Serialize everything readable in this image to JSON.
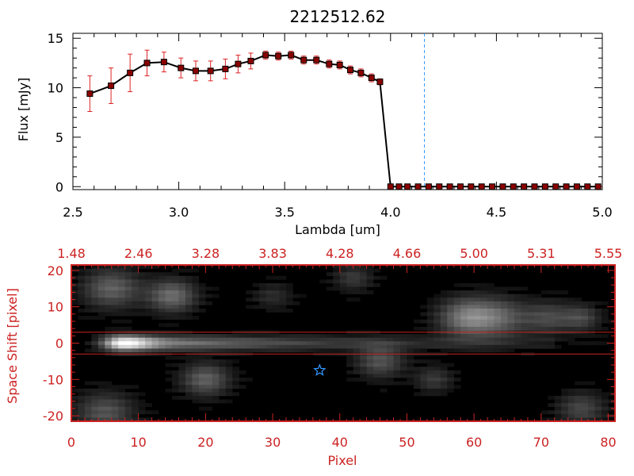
{
  "title": "2212512.62",
  "colors": {
    "axis": "#000000",
    "red_axis": "#cc2222",
    "marker": "#8b0000",
    "errorbar": "#dd2222",
    "vline": "#3399ff",
    "star": "#3399ff"
  },
  "chart_data": [
    {
      "type": "line",
      "title": "2212512.62",
      "xlabel": "Lambda [um]",
      "ylabel": "Flux [mJy]",
      "xlim": [
        2.5,
        5.0
      ],
      "ylim": [
        -0.3,
        15.5
      ],
      "x_ticks": [
        "2.5",
        "3.0",
        "3.5",
        "4.0",
        "4.5",
        "5.0"
      ],
      "y_ticks": [
        "0",
        "5",
        "10",
        "15"
      ],
      "vline_x": 4.16,
      "series": [
        {
          "x": [
            2.58,
            2.68,
            2.77,
            2.85,
            2.93,
            3.01,
            3.08,
            3.15,
            3.22,
            3.28,
            3.34,
            3.41,
            3.47,
            3.53,
            3.59,
            3.65,
            3.71,
            3.76,
            3.81,
            3.86,
            3.91,
            3.95,
            4.0,
            4.04,
            4.08,
            4.13,
            4.18,
            4.23,
            4.28,
            4.33,
            4.38,
            4.43,
            4.48,
            4.53,
            4.58,
            4.63,
            4.68,
            4.73,
            4.78,
            4.83,
            4.88,
            4.93,
            4.98
          ],
          "y": [
            9.4,
            10.2,
            11.5,
            12.5,
            12.6,
            12.0,
            11.7,
            11.7,
            11.9,
            12.4,
            12.7,
            13.3,
            13.2,
            13.3,
            12.8,
            12.8,
            12.4,
            12.3,
            11.8,
            11.5,
            11.0,
            10.6,
            0.0,
            0.0,
            0.0,
            0.0,
            0.0,
            0.0,
            0.0,
            0.0,
            0.0,
            0.0,
            0.0,
            0.0,
            0.0,
            0.0,
            0.0,
            0.0,
            0.0,
            0.0,
            0.0,
            0.0,
            0.0
          ],
          "yerr": [
            1.8,
            1.8,
            1.9,
            1.3,
            1.0,
            1.0,
            1.0,
            1.0,
            1.0,
            0.9,
            0.8,
            0.4,
            0.4,
            0.4,
            0.4,
            0.4,
            0.4,
            0.4,
            0.4,
            0.4,
            0.4,
            0.3,
            0.0,
            0.0,
            0.0,
            0.0,
            0.0,
            0.0,
            0.0,
            0.0,
            0.0,
            0.0,
            0.0,
            0.0,
            0.0,
            0.0,
            0.0,
            0.0,
            0.0,
            0.0,
            0.0,
            0.0,
            0.0
          ]
        }
      ]
    },
    {
      "type": "heatmap",
      "xlabel": "Pixel",
      "ylabel": "Space Shift [pixel]",
      "xlim": [
        0,
        81
      ],
      "ylim": [
        -21.5,
        21.5
      ],
      "x_ticks": [
        "0",
        "10",
        "20",
        "30",
        "40",
        "50",
        "60",
        "70",
        "80"
      ],
      "y_ticks": [
        "-20",
        "-10",
        "0",
        "10",
        "20"
      ],
      "top_ticks": [
        "1.48",
        "2.46",
        "3.28",
        "3.83",
        "4.28",
        "4.66",
        "5.00",
        "5.31",
        "5.55"
      ],
      "hlines": [
        3,
        -3
      ],
      "trace": {
        "center_y": 0,
        "peak_x": 8
      },
      "blobs": [
        {
          "x": 6,
          "y": 15,
          "s": 3,
          "a": 0.35
        },
        {
          "x": 15,
          "y": 13,
          "s": 2.5,
          "a": 0.4
        },
        {
          "x": 20,
          "y": -10,
          "s": 2.5,
          "a": 0.35
        },
        {
          "x": 46,
          "y": -5,
          "s": 2.5,
          "a": 0.3
        },
        {
          "x": 54,
          "y": -10,
          "s": 2.0,
          "a": 0.2
        },
        {
          "x": 59,
          "y": 7,
          "s": 3,
          "a": 0.45
        },
        {
          "x": 64,
          "y": 7,
          "s": 3,
          "a": 0.3
        },
        {
          "x": 71,
          "y": 7,
          "s": 2.5,
          "a": 0.25
        },
        {
          "x": 76,
          "y": 7,
          "s": 2,
          "a": 0.25
        },
        {
          "x": 5,
          "y": -19,
          "s": 3,
          "a": 0.3
        },
        {
          "x": 76,
          "y": -18,
          "s": 2.5,
          "a": 0.25
        },
        {
          "x": 42,
          "y": 18,
          "s": 2,
          "a": 0.2
        },
        {
          "x": 30,
          "y": 13,
          "s": 2,
          "a": 0.15
        }
      ],
      "star": {
        "x": 37,
        "y": -7.5
      }
    }
  ]
}
